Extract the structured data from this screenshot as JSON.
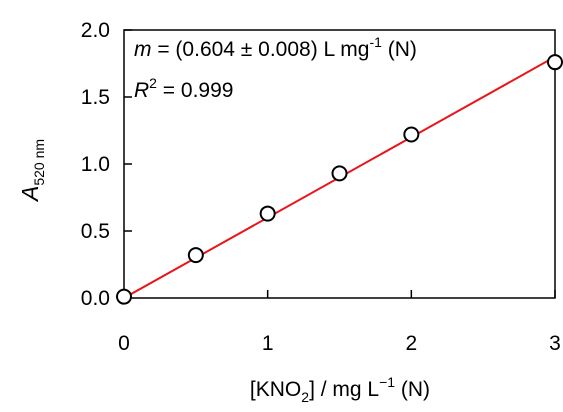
{
  "chart_data": {
    "type": "scatter",
    "annotation_1": [
      "m",
      " = (0.604 ± 0.008) L mg",
      "-1",
      " (N)"
    ],
    "annotation_2": [
      "R",
      "2",
      " = 0.999"
    ],
    "ylabel": [
      "A",
      "520 nm"
    ],
    "xlabel": [
      "[KNO",
      "2",
      "] / mg L",
      "−1",
      " (N)"
    ],
    "x": [
      0,
      0.5,
      1,
      1.5,
      2,
      3
    ],
    "values": [
      0.01,
      0.32,
      0.63,
      0.93,
      1.22,
      1.76
    ],
    "marker_color": "#000000",
    "fit": {
      "color": "#e8161b",
      "x": [
        0,
        3
      ],
      "y": [
        0.0,
        1.8
      ]
    },
    "xlim": [
      0,
      3
    ],
    "ylim": [
      0,
      2
    ],
    "xticks": [
      0,
      1,
      2,
      3
    ],
    "yticks": [
      {
        "value": 0,
        "label": "0.0"
      },
      {
        "value": 0.5,
        "label": "0.5"
      },
      {
        "value": 1,
        "label": "1.0"
      },
      {
        "value": 1.5,
        "label": "1.5"
      },
      {
        "value": 2,
        "label": "2.0"
      }
    ]
  }
}
